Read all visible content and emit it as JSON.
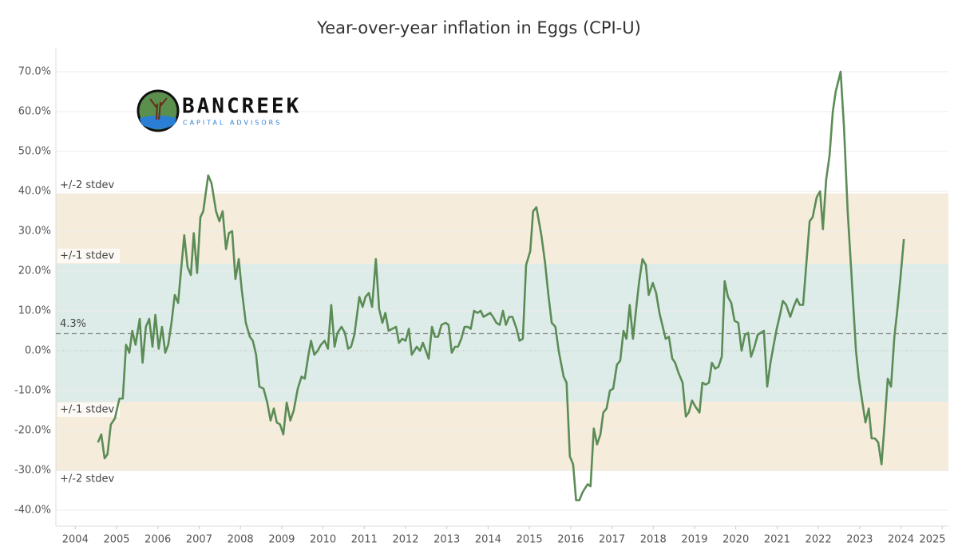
{
  "chart_data": {
    "type": "line",
    "title": "Year-over-year inflation in Eggs (CPI-U)",
    "logo": {
      "name": "BANCREEK",
      "tagline": "CAPITAL ADVISORS"
    },
    "xlim": [
      2003.53,
      2025.15
    ],
    "ylim": [
      -44,
      76
    ],
    "xticks": [
      2004,
      2005,
      2006,
      2007,
      2008,
      2009,
      2010,
      2011,
      2012,
      2013,
      2014,
      2015,
      2016,
      2017,
      2018,
      2019,
      2020,
      2021,
      2022,
      2023,
      2024,
      2025
    ],
    "yticks": [
      {
        "value": 70,
        "label": "70.0%"
      },
      {
        "value": 60,
        "label": "60.0%"
      },
      {
        "value": 50,
        "label": "50.0%"
      },
      {
        "value": 40,
        "label": "40.0%"
      },
      {
        "value": 30,
        "label": "30.0%"
      },
      {
        "value": 20,
        "label": "20.0%"
      },
      {
        "value": 10,
        "label": "10.0%"
      },
      {
        "value": 0,
        "label": "0.0%"
      },
      {
        "value": -10,
        "label": "-10.0%"
      },
      {
        "value": -20,
        "label": "-20.0%"
      },
      {
        "value": -30,
        "label": "-30.0%"
      },
      {
        "value": -40,
        "label": "-40.0%"
      }
    ],
    "grid": true,
    "bands": [
      {
        "label": "+/-2 stdev",
        "low": -30.2,
        "high": 39.5,
        "color": "#f5ecdc"
      },
      {
        "label": "+/-1 stdev",
        "low": -12.8,
        "high": 21.8,
        "color": "#deece9"
      }
    ],
    "mean": {
      "value": 4.3,
      "label": "4.3%"
    },
    "series": [
      {
        "color": "#5b8c56",
        "x": [
          2004.55,
          2004.63,
          2004.71,
          2004.78,
          2004.86,
          2004.96,
          2005.07,
          2005.15,
          2005.23,
          2005.31,
          2005.38,
          2005.46,
          2005.56,
          2005.63,
          2005.71,
          2005.79,
          2005.87,
          2005.94,
          2006.02,
          2006.1,
          2006.18,
          2006.25,
          2006.33,
          2006.41,
          2006.49,
          2006.64,
          2006.72,
          2006.8,
          2006.87,
          2006.95,
          2007.03,
          2007.1,
          2007.22,
          2007.3,
          2007.41,
          2007.49,
          2007.57,
          2007.65,
          2007.72,
          2007.8,
          2007.88,
          2007.96,
          2008.03,
          2008.13,
          2008.23,
          2008.3,
          2008.38,
          2008.46,
          2008.56,
          2008.65,
          2008.73,
          2008.81,
          2008.88,
          2008.96,
          2009.04,
          2009.12,
          2009.21,
          2009.29,
          2009.39,
          2009.48,
          2009.56,
          2009.64,
          2009.71,
          2009.79,
          2009.87,
          2009.95,
          2010.04,
          2010.12,
          2010.2,
          2010.28,
          2010.35,
          2010.45,
          2010.53,
          2010.61,
          2010.68,
          2010.76,
          2010.88,
          2010.96,
          2011.03,
          2011.11,
          2011.19,
          2011.28,
          2011.36,
          2011.44,
          2011.51,
          2011.59,
          2011.77,
          2011.84,
          2011.92,
          2012.0,
          2012.08,
          2012.15,
          2012.27,
          2012.35,
          2012.42,
          2012.56,
          2012.64,
          2012.71,
          2012.79,
          2012.87,
          2012.97,
          2013.04,
          2013.12,
          2013.2,
          2013.27,
          2013.35,
          2013.43,
          2013.51,
          2013.58,
          2013.66,
          2013.74,
          2013.82,
          2013.89,
          2013.97,
          2014.05,
          2014.12,
          2014.2,
          2014.28,
          2014.36,
          2014.43,
          2014.51,
          2014.59,
          2014.69,
          2014.76,
          2014.84,
          2014.92,
          2015.02,
          2015.09,
          2015.17,
          2015.29,
          2015.38,
          2015.46,
          2015.54,
          2015.63,
          2015.71,
          2015.83,
          2015.9,
          2015.98,
          2016.06,
          2016.13,
          2016.21,
          2016.29,
          2016.41,
          2016.48,
          2016.56,
          2016.64,
          2016.72,
          2016.79,
          2016.87,
          2016.95,
          2017.03,
          2017.12,
          2017.2,
          2017.28,
          2017.35,
          2017.43,
          2017.51,
          2017.59,
          2017.66,
          2017.74,
          2017.82,
          2017.89,
          2017.99,
          2018.07,
          2018.15,
          2018.22,
          2018.3,
          2018.38,
          2018.46,
          2018.53,
          2018.61,
          2018.71,
          2018.79,
          2018.86,
          2018.94,
          2019.02,
          2019.12,
          2019.19,
          2019.27,
          2019.35,
          2019.42,
          2019.5,
          2019.58,
          2019.66,
          2019.73,
          2019.81,
          2019.89,
          2019.97,
          2020.06,
          2020.14,
          2020.22,
          2020.3,
          2020.37,
          2020.45,
          2020.53,
          2020.6,
          2020.68,
          2020.76,
          2020.84,
          2020.91,
          2020.99,
          2021.07,
          2021.14,
          2021.22,
          2021.32,
          2021.4,
          2021.48,
          2021.55,
          2021.63,
          2021.71,
          2021.79,
          2021.86,
          2021.96,
          2022.04,
          2022.11,
          2022.19,
          2022.27,
          2022.35,
          2022.42,
          2022.54,
          2022.62,
          2022.71,
          2022.79,
          2022.91,
          2022.98,
          2023.06,
          2023.14,
          2023.22,
          2023.29,
          2023.37,
          2023.45,
          2023.53,
          2023.6,
          2023.68,
          2023.76,
          2023.84,
          2023.91,
          2023.99,
          2024.07
        ],
        "values": [
          -23,
          -21,
          -27,
          -26,
          -18.5,
          -17,
          -12,
          -12,
          1.5,
          -0.5,
          5,
          1.5,
          8,
          -3,
          6,
          8,
          1,
          9,
          0.5,
          6,
          -0.5,
          1.5,
          7,
          14,
          12,
          29,
          21,
          19,
          29.5,
          19.5,
          33.5,
          35,
          44,
          42,
          35,
          32.5,
          35,
          25.5,
          29.5,
          30,
          18,
          23,
          15.5,
          7,
          3.5,
          2.5,
          -1,
          -9,
          -9.5,
          -13,
          -17.5,
          -14.5,
          -18,
          -18.5,
          -21,
          -13,
          -17.5,
          -15,
          -9.5,
          -6.5,
          -7,
          -1.5,
          2.5,
          -1,
          0,
          1.5,
          2.5,
          0.5,
          11.5,
          1,
          4.5,
          6,
          4.5,
          0.5,
          1,
          4,
          13.5,
          11,
          13.5,
          14.5,
          11,
          23,
          10.5,
          7,
          9.5,
          5,
          6,
          2,
          3,
          2.5,
          5.5,
          -1,
          1,
          0,
          2,
          -2,
          6,
          3.5,
          3.5,
          6.5,
          7,
          6.5,
          -0.5,
          1,
          1,
          3,
          6,
          6,
          5.5,
          10,
          9.5,
          10,
          8.5,
          9,
          9.5,
          8.5,
          7,
          6.5,
          10,
          6.5,
          8.5,
          8.5,
          5.5,
          2.5,
          3,
          21.5,
          25,
          35,
          36,
          29,
          22,
          14,
          7,
          6,
          0,
          -6.5,
          -8,
          -26.5,
          -28.5,
          -37.5,
          -37.5,
          -35.5,
          -33.5,
          -34,
          -19.5,
          -23.5,
          -21,
          -15.5,
          -14.5,
          -10,
          -9.5,
          -3.5,
          -2.5,
          5,
          3,
          11.5,
          3,
          11,
          17.5,
          23,
          21.5,
          14,
          17,
          14.5,
          9.5,
          6.5,
          3,
          3.5,
          -2,
          -3,
          -5.5,
          -8,
          -16.5,
          -15.5,
          -12.5,
          -14,
          -15.5,
          -8,
          -8.5,
          -8,
          -3,
          -4.5,
          -4,
          -1.5,
          17.5,
          13.5,
          12,
          7.5,
          7,
          0,
          4,
          4.5,
          -1.5,
          1,
          4,
          4.5,
          5,
          -9,
          -3,
          1,
          5.5,
          9,
          12.5,
          11.5,
          8.5,
          11,
          13,
          11.5,
          11.5,
          22,
          32.5,
          33.5,
          38.5,
          40,
          30.5,
          43,
          49,
          60,
          65,
          70,
          56,
          35,
          21,
          0,
          -7,
          -12.5,
          -18,
          -14.5,
          -22,
          -22,
          -23,
          -28.5,
          -19,
          -7,
          -9,
          3.5,
          10,
          18.5,
          28
        ]
      }
    ]
  }
}
